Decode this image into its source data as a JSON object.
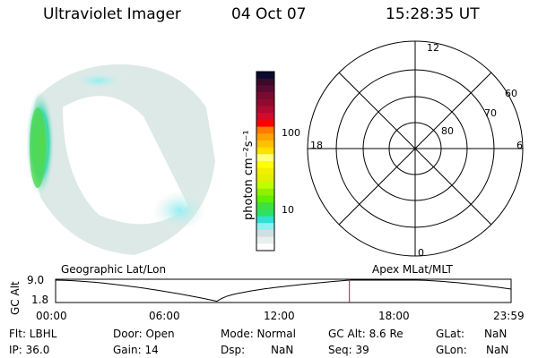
{
  "header": {
    "instrument": "Ultraviolet Imager",
    "date": "04 Oct 07",
    "time": "15:28:35 UT"
  },
  "colorbar": {
    "label": "photon cm⁻²s⁻¹",
    "ticks": [
      "100",
      "10"
    ],
    "colors": [
      "#0a0a30",
      "#3a0a2a",
      "#5a0a30",
      "#7a0a30",
      "#900a30",
      "#b00a30",
      "#d00a30",
      "#ff0000",
      "#ff7a00",
      "#ffa000",
      "#ffc000",
      "#ffe000",
      "#ffff80",
      "#ffff00",
      "#f0f000",
      "#e0f000",
      "#c0ff00",
      "#90f000",
      "#60f000",
      "#40e040",
      "#30e060",
      "#30e0d0",
      "#90f0f0",
      "#d0e0e0",
      "#e8f0ee",
      "#ffffff"
    ]
  },
  "polar": {
    "mlt_labels": {
      "top": "12",
      "left": "18",
      "right": "6",
      "bottom": "0"
    },
    "lat_labels": [
      "60",
      "70",
      "80"
    ]
  },
  "timeline": {
    "left_label": "Geographic Lat/Lon",
    "right_label": "Apex  MLat/MLT",
    "ylabel": "GC Alt",
    "yticks": [
      "9.0",
      "1.8"
    ],
    "xticks": [
      "00:00",
      "06:00",
      "12:00",
      "18:00",
      "23:59"
    ],
    "current_time_hours": 15.48,
    "marker_color": "#ff0000"
  },
  "status": {
    "flt": "Flt: LBHL",
    "ip": "IP: 36.0",
    "door": "Door: Open",
    "gain": "Gain: 14",
    "mode": "Mode: Normal",
    "dsp_label": "Dsp:",
    "dsp": "NaN",
    "gcalt": "GC Alt: 8.6 Re",
    "seq": "Seq: 39",
    "glat_label": "GLat:",
    "glat": "NaN",
    "glon_label": "GLon:",
    "glon": "NaN"
  }
}
